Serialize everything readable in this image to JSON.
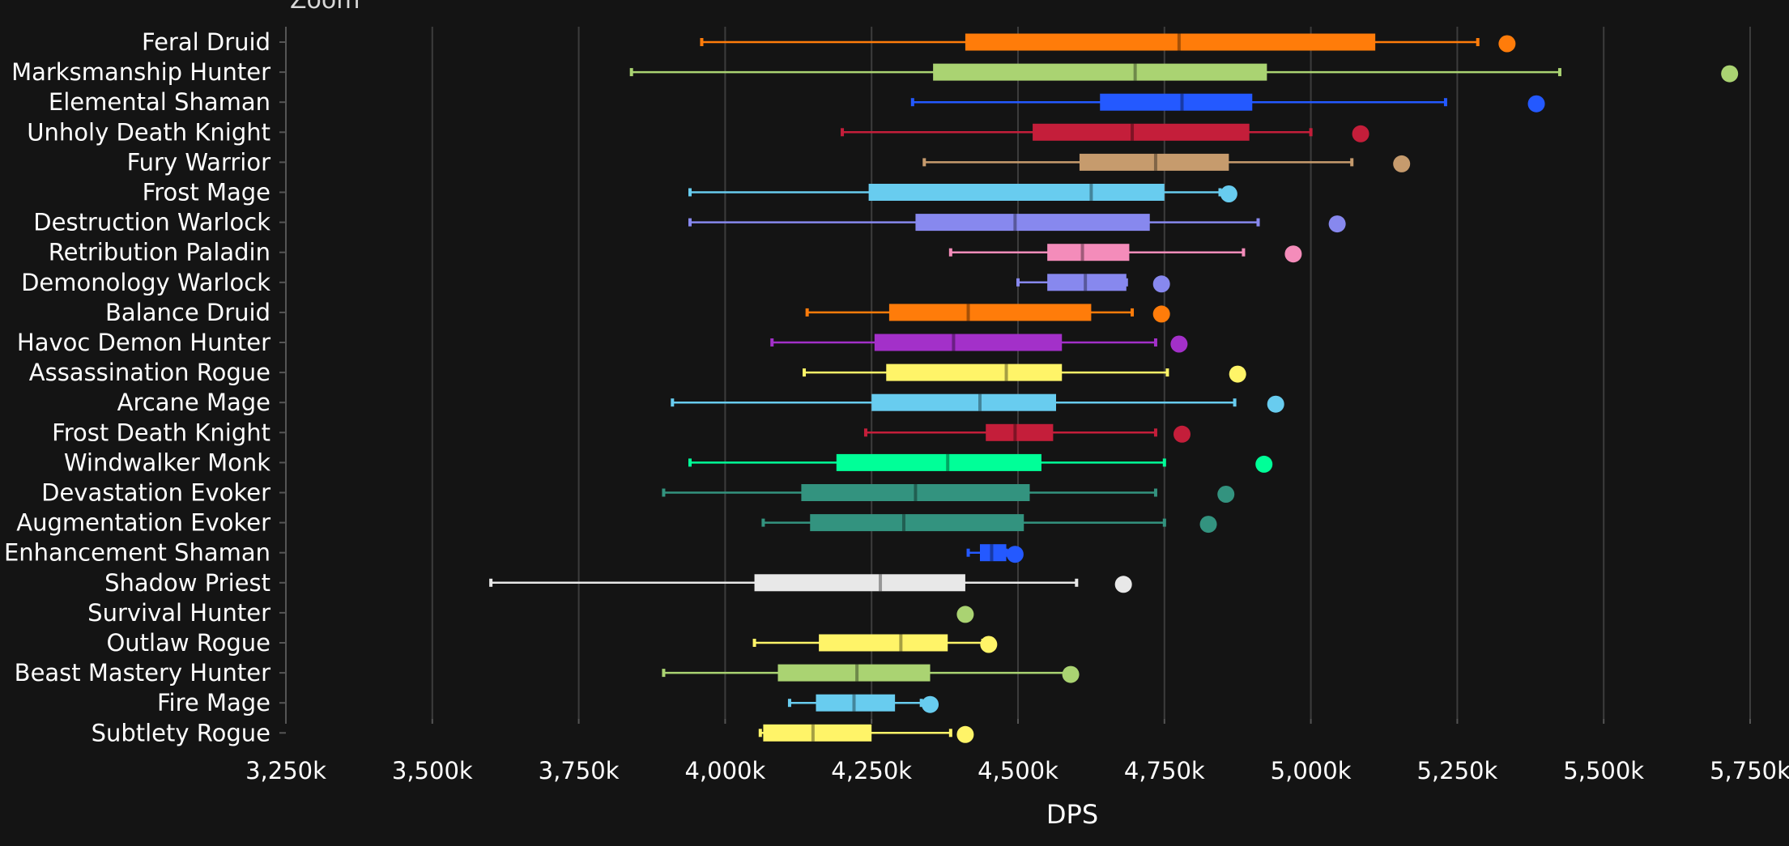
{
  "chart_data": {
    "type": "box",
    "title": "",
    "zoom_label": "Zoom",
    "xlabel": "DPS",
    "ylabel": "",
    "xlim": [
      3250,
      5750
    ],
    "x_unit": "k",
    "grid": "vertical",
    "xticks": [
      {
        "value": 3250,
        "label": "3,250k"
      },
      {
        "value": 3500,
        "label": "3,500k"
      },
      {
        "value": 3750,
        "label": "3,750k"
      },
      {
        "value": 4000,
        "label": "4,000k"
      },
      {
        "value": 4250,
        "label": "4,250k"
      },
      {
        "value": 4500,
        "label": "4,500k"
      },
      {
        "value": 4750,
        "label": "4,750k"
      },
      {
        "value": 5000,
        "label": "5,000k"
      },
      {
        "value": 5250,
        "label": "5,250k"
      },
      {
        "value": 5500,
        "label": "5,500k"
      },
      {
        "value": 5750,
        "label": "5,750k"
      }
    ],
    "series": [
      {
        "name": "Feral Druid",
        "color": "#FF7C0A",
        "min": 3960,
        "q1": 4410,
        "median": 4775,
        "q3": 5110,
        "max": 5285,
        "outlier": 5335
      },
      {
        "name": "Marksmanship Hunter",
        "color": "#AAD372",
        "min": 3840,
        "q1": 4355,
        "median": 4700,
        "q3": 4925,
        "max": 5425,
        "outlier": 5715
      },
      {
        "name": "Elemental Shaman",
        "color": "#2459FF",
        "min": 4320,
        "q1": 4640,
        "median": 4780,
        "q3": 4900,
        "max": 5230,
        "outlier": 5385
      },
      {
        "name": "Unholy Death Knight",
        "color": "#C41E3A",
        "min": 4200,
        "q1": 4525,
        "median": 4695,
        "q3": 4895,
        "max": 5000,
        "outlier": 5085
      },
      {
        "name": "Fury Warrior",
        "color": "#C69B6D",
        "min": 4340,
        "q1": 4605,
        "median": 4735,
        "q3": 4860,
        "max": 5070,
        "outlier": 5155
      },
      {
        "name": "Frost Mage",
        "color": "#68CCEF",
        "min": 3940,
        "q1": 4245,
        "median": 4625,
        "q3": 4750,
        "max": 4845,
        "outlier": 4860
      },
      {
        "name": "Destruction Warlock",
        "color": "#8788EE",
        "min": 3940,
        "q1": 4325,
        "median": 4495,
        "q3": 4725,
        "max": 4910,
        "outlier": 5045
      },
      {
        "name": "Retribution Paladin",
        "color": "#F48CBA",
        "min": 4385,
        "q1": 4550,
        "median": 4610,
        "q3": 4690,
        "max": 4885,
        "outlier": 4970
      },
      {
        "name": "Demonology Warlock",
        "color": "#8788EE",
        "min": 4500,
        "q1": 4550,
        "median": 4615,
        "q3": 4685,
        "max": 4685,
        "outlier": 4745
      },
      {
        "name": "Balance Druid",
        "color": "#FF7C0A",
        "min": 4140,
        "q1": 4280,
        "median": 4415,
        "q3": 4625,
        "max": 4695,
        "outlier": 4745
      },
      {
        "name": "Havoc Demon Hunter",
        "color": "#A330C9",
        "min": 4080,
        "q1": 4255,
        "median": 4390,
        "q3": 4575,
        "max": 4735,
        "outlier": 4775
      },
      {
        "name": "Assassination Rogue",
        "color": "#FFF468",
        "min": 4135,
        "q1": 4275,
        "median": 4480,
        "q3": 4575,
        "max": 4755,
        "outlier": 4875
      },
      {
        "name": "Arcane Mage",
        "color": "#68CCEF",
        "min": 3910,
        "q1": 4250,
        "median": 4435,
        "q3": 4565,
        "max": 4870,
        "outlier": 4940
      },
      {
        "name": "Frost Death Knight",
        "color": "#C41E3A",
        "min": 4240,
        "q1": 4445,
        "median": 4495,
        "q3": 4560,
        "max": 4735,
        "outlier": 4780
      },
      {
        "name": "Windwalker Monk",
        "color": "#00FF98",
        "min": 3940,
        "q1": 4190,
        "median": 4380,
        "q3": 4540,
        "max": 4750,
        "outlier": 4920
      },
      {
        "name": "Devastation Evoker",
        "color": "#33937F",
        "min": 3895,
        "q1": 4130,
        "median": 4325,
        "q3": 4520,
        "max": 4735,
        "outlier": 4855
      },
      {
        "name": "Augmentation Evoker",
        "color": "#33937F",
        "min": 4065,
        "q1": 4145,
        "median": 4305,
        "q3": 4510,
        "max": 4750,
        "outlier": 4825
      },
      {
        "name": "Enhancement Shaman",
        "color": "#2459FF",
        "min": 4415,
        "q1": 4435,
        "median": 4455,
        "q3": 4480,
        "max": 4480,
        "outlier": 4495
      },
      {
        "name": "Shadow Priest",
        "color": "#E8E8E8",
        "min": 3600,
        "q1": 4050,
        "median": 4265,
        "q3": 4410,
        "max": 4600,
        "outlier": 4680
      },
      {
        "name": "Survival Hunter",
        "color": "#AAD372",
        "min": null,
        "q1": null,
        "median": null,
        "q3": null,
        "max": null,
        "outlier": 4410
      },
      {
        "name": "Outlaw Rogue",
        "color": "#FFF468",
        "min": 4050,
        "q1": 4160,
        "median": 4300,
        "q3": 4380,
        "max": 4440,
        "outlier": 4450
      },
      {
        "name": "Beast Mastery Hunter",
        "color": "#AAD372",
        "min": 3895,
        "q1": 4090,
        "median": 4225,
        "q3": 4350,
        "max": 4590,
        "outlier": 4590
      },
      {
        "name": "Fire Mage",
        "color": "#68CCEF",
        "min": 4110,
        "q1": 4155,
        "median": 4220,
        "q3": 4290,
        "max": 4335,
        "outlier": 4350
      },
      {
        "name": "Subtlety Rogue",
        "color": "#FFF468",
        "min": 4060,
        "q1": 4065,
        "median": 4150,
        "q3": 4250,
        "max": 4385,
        "outlier": 4410
      }
    ]
  }
}
